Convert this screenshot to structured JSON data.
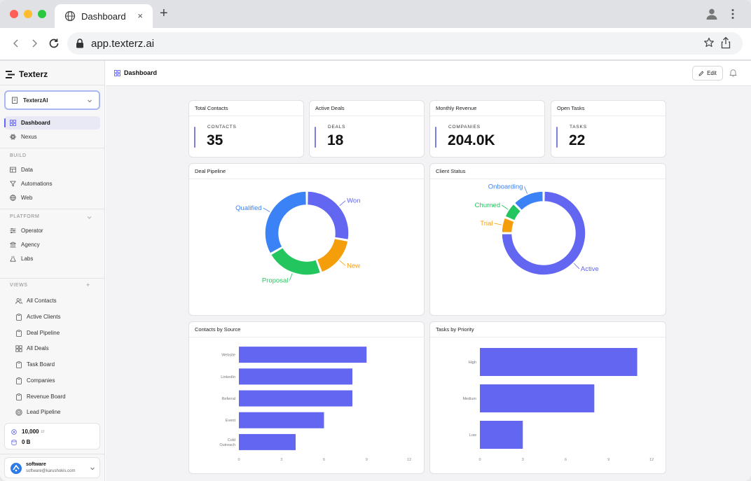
{
  "browser": {
    "tab_title": "Dashboard",
    "tab_close": "×",
    "new_tab": "+",
    "url": "app.texterz.ai"
  },
  "sidebar": {
    "brand": "Texterz",
    "workspace": "TexterzAI",
    "nav_top": [
      {
        "label": "Dashboard",
        "icon": "grid-icon",
        "active": true
      },
      {
        "label": "Nexus",
        "icon": "atom-icon",
        "active": false
      }
    ],
    "sections": {
      "build": {
        "label": "BUILD",
        "items": [
          {
            "label": "Data",
            "icon": "table-icon"
          },
          {
            "label": "Automations",
            "icon": "filter-icon"
          },
          {
            "label": "Web",
            "icon": "globe-icon"
          }
        ]
      },
      "platform": {
        "label": "PLATFORM",
        "items": [
          {
            "label": "Operator",
            "icon": "sliders-icon"
          },
          {
            "label": "Agency",
            "icon": "bank-icon"
          },
          {
            "label": "Labs",
            "icon": "flask-icon"
          }
        ]
      },
      "views": {
        "label": "VIEWS",
        "add": "+",
        "items": [
          {
            "label": "All Contacts",
            "icon": "users-icon"
          },
          {
            "label": "Active Clients",
            "icon": "clipboard-icon"
          },
          {
            "label": "Deal Pipeline",
            "icon": "clipboard-icon"
          },
          {
            "label": "All Deals",
            "icon": "grid-icon"
          },
          {
            "label": "Task Board",
            "icon": "clipboard-icon"
          },
          {
            "label": "Companies",
            "icon": "clipboard-icon"
          },
          {
            "label": "Revenue Board",
            "icon": "clipboard-icon"
          },
          {
            "label": "Lead Pipeline",
            "icon": "target-icon"
          }
        ]
      }
    },
    "credits": {
      "amount": "10,000",
      "unit": "cr",
      "storage": "0 B"
    },
    "user": {
      "name": "software",
      "email": "software@karushokis.com"
    }
  },
  "header": {
    "title": "Dashboard",
    "edit_label": "Edit"
  },
  "stats": [
    {
      "title": "Total Contacts",
      "label": "CONTACTS",
      "value": "35"
    },
    {
      "title": "Active Deals",
      "label": "DEALS",
      "value": "18"
    },
    {
      "title": "Monthly Revenue",
      "label": "COMPANIES",
      "value": "204.0K"
    },
    {
      "title": "Open Tasks",
      "label": "TASKS",
      "value": "22"
    }
  ],
  "colors": {
    "accent": "#6366f1",
    "blue": "#3b82f6",
    "orange": "#f59e0b",
    "green": "#22c55e"
  },
  "chart_data": [
    {
      "title": "Deal Pipeline",
      "type": "pie",
      "labels": [
        "Won",
        "New",
        "Proposal",
        "Qualified"
      ],
      "values": [
        5,
        3,
        4,
        6
      ],
      "colors": [
        "#6366f1",
        "#f59e0b",
        "#22c55e",
        "#3b82f6"
      ]
    },
    {
      "title": "Client Status",
      "type": "pie",
      "labels": [
        "Active",
        "Trial",
        "Churned",
        "Onboarding"
      ],
      "values": [
        24,
        2,
        2,
        4
      ],
      "colors": [
        "#6366f1",
        "#f59e0b",
        "#22c55e",
        "#3b82f6"
      ]
    },
    {
      "title": "Contacts by Source",
      "type": "bar",
      "orientation": "horizontal",
      "categories": [
        "Website",
        "LinkedIn",
        "Referral",
        "Event",
        "Cold Outreach"
      ],
      "values": [
        9,
        8,
        8,
        6,
        4
      ],
      "xlim": [
        0,
        12
      ],
      "xticks": [
        "0",
        "3",
        "6",
        "9",
        "12"
      ],
      "color": "#6366f1"
    },
    {
      "title": "Tasks by Priority",
      "type": "bar",
      "orientation": "horizontal",
      "categories": [
        "High",
        "Medium",
        "Low"
      ],
      "values": [
        11,
        8,
        3
      ],
      "xlim": [
        0,
        12
      ],
      "xticks": [
        "0",
        "3",
        "6",
        "9",
        "12"
      ],
      "color": "#6366f1"
    }
  ]
}
